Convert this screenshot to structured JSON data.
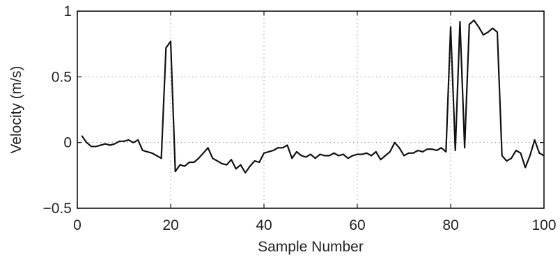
{
  "chart_data": {
    "type": "line",
    "title": "",
    "xlabel": "Sample Number",
    "ylabel": "Velocity (m/s)",
    "xlim": [
      0,
      100
    ],
    "ylim": [
      -0.5,
      1
    ],
    "xticks": [
      0,
      20,
      40,
      60,
      80,
      100
    ],
    "xtick_labels": [
      "0",
      "20",
      "40",
      "60",
      "80",
      "100"
    ],
    "yticks": [
      -0.5,
      0,
      0.5,
      1
    ],
    "ytick_labels": [
      "−0.5",
      "0",
      "0.5",
      "1"
    ],
    "grid": true,
    "legend": "none",
    "line_color": "#111111",
    "grid_color": "#9a9a9a",
    "series": [
      {
        "x": [
          1,
          2,
          3,
          4,
          5,
          6,
          7,
          8,
          9,
          10,
          11,
          12,
          13,
          14,
          15,
          16,
          17,
          18,
          19,
          20,
          21,
          22,
          23,
          24,
          25,
          26,
          27,
          28,
          29,
          30,
          31,
          32,
          33,
          34,
          35,
          36,
          37,
          38,
          39,
          40,
          41,
          42,
          43,
          44,
          45,
          46,
          47,
          48,
          49,
          50,
          51,
          52,
          53,
          54,
          55,
          56,
          57,
          58,
          59,
          60,
          61,
          62,
          63,
          64,
          65,
          66,
          67,
          68,
          69,
          70,
          71,
          72,
          73,
          74,
          75,
          76,
          77,
          78,
          79,
          80,
          81,
          82,
          83,
          84,
          85,
          86,
          87,
          88,
          89,
          90,
          91,
          92,
          93,
          94,
          95,
          96,
          97,
          98,
          99,
          100
        ],
        "values": [
          0.05,
          0.0,
          -0.03,
          -0.03,
          -0.02,
          -0.01,
          -0.02,
          -0.01,
          0.01,
          0.01,
          0.02,
          0.0,
          0.02,
          -0.06,
          -0.07,
          -0.08,
          -0.1,
          -0.12,
          0.72,
          0.77,
          -0.22,
          -0.17,
          -0.18,
          -0.15,
          -0.15,
          -0.12,
          -0.08,
          -0.04,
          -0.12,
          -0.14,
          -0.16,
          -0.17,
          -0.13,
          -0.2,
          -0.17,
          -0.23,
          -0.18,
          -0.14,
          -0.15,
          -0.08,
          -0.07,
          -0.06,
          -0.04,
          -0.04,
          -0.02,
          -0.12,
          -0.07,
          -0.1,
          -0.11,
          -0.09,
          -0.12,
          -0.09,
          -0.1,
          -0.1,
          -0.08,
          -0.1,
          -0.09,
          -0.12,
          -0.1,
          -0.09,
          -0.09,
          -0.08,
          -0.1,
          -0.07,
          -0.13,
          -0.1,
          -0.07,
          0.0,
          -0.04,
          -0.1,
          -0.08,
          -0.08,
          -0.06,
          -0.07,
          -0.05,
          -0.05,
          -0.06,
          -0.04,
          -0.07,
          0.88,
          -0.06,
          0.92,
          -0.04,
          0.9,
          0.93,
          0.88,
          0.82,
          0.84,
          0.87,
          0.84,
          -0.1,
          -0.14,
          -0.12,
          -0.06,
          -0.08,
          -0.19,
          -0.1,
          0.02,
          -0.08,
          -0.1
        ]
      }
    ]
  }
}
